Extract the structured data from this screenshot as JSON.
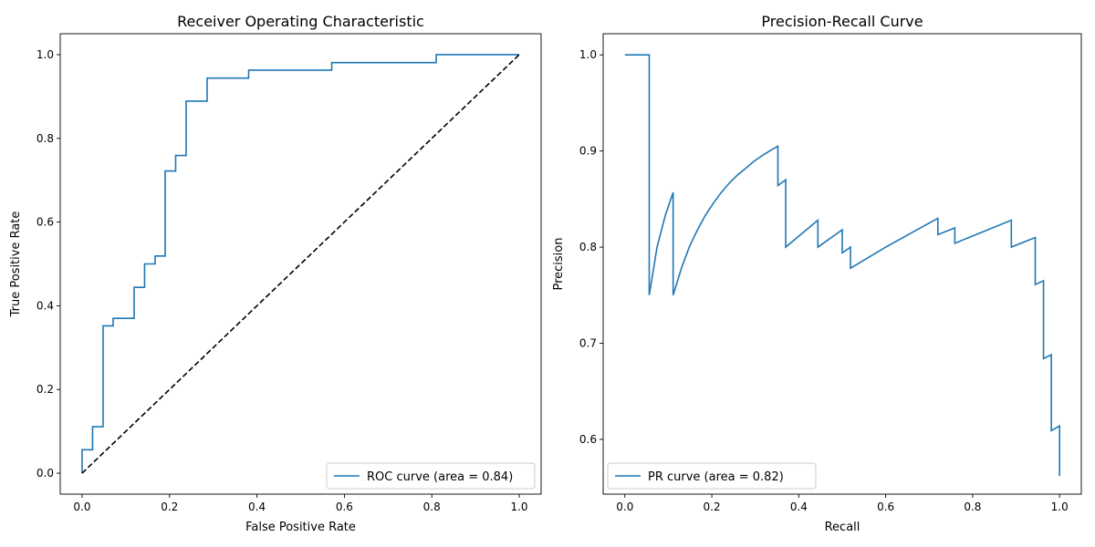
{
  "chart_data": [
    {
      "type": "line",
      "title": "Receiver Operating Characteristic",
      "xlabel": "False Positive Rate",
      "ylabel": "True Positive Rate",
      "xlim": [
        -0.05,
        1.05
      ],
      "ylim": [
        -0.05,
        1.05
      ],
      "xticks": [
        0.0,
        0.2,
        0.4,
        0.6,
        0.8,
        1.0
      ],
      "yticks": [
        0.0,
        0.2,
        0.4,
        0.6,
        0.8,
        1.0
      ],
      "xtick_labels": [
        "0.0",
        "0.2",
        "0.4",
        "0.6",
        "0.8",
        "1.0"
      ],
      "ytick_labels": [
        "0.0",
        "0.2",
        "0.4",
        "0.6",
        "0.8",
        "1.0"
      ],
      "grid": false,
      "legend_position": "lower-right",
      "series": [
        {
          "name": "ROC curve (area = 0.84)",
          "color": "#1f77b4",
          "style": "solid",
          "step": true,
          "x": [
            0,
            0,
            0.024,
            0.024,
            0.048,
            0.048,
            0.071,
            0.071,
            0.119,
            0.119,
            0.143,
            0.143,
            0.167,
            0.167,
            0.19,
            0.19,
            0.214,
            0.214,
            0.238,
            0.238,
            0.286,
            0.286,
            0.381,
            0.381,
            0.571,
            0.571,
            0.81,
            0.81,
            1.0
          ],
          "y": [
            0,
            0.056,
            0.056,
            0.111,
            0.111,
            0.352,
            0.352,
            0.37,
            0.37,
            0.444,
            0.444,
            0.5,
            0.5,
            0.519,
            0.519,
            0.722,
            0.722,
            0.759,
            0.759,
            0.889,
            0.889,
            0.944,
            0.944,
            0.963,
            0.963,
            0.981,
            0.981,
            1.0,
            1.0
          ]
        },
        {
          "name": "",
          "color": "#000000",
          "style": "dashed",
          "x": [
            0,
            1
          ],
          "y": [
            0,
            1
          ]
        }
      ]
    },
    {
      "type": "line",
      "title": "Precision-Recall Curve",
      "xlabel": "Recall",
      "ylabel": "Precision",
      "xlim": [
        -0.05,
        1.05
      ],
      "ylim": [
        0.543,
        1.022
      ],
      "xticks": [
        0.0,
        0.2,
        0.4,
        0.6,
        0.8,
        1.0
      ],
      "yticks": [
        0.6,
        0.7,
        0.8,
        0.9,
        1.0
      ],
      "xtick_labels": [
        "0.0",
        "0.2",
        "0.4",
        "0.6",
        "0.8",
        "1.0"
      ],
      "ytick_labels": [
        "0.6",
        "0.7",
        "0.8",
        "0.9",
        "1.0"
      ],
      "grid": false,
      "legend_position": "lower-left",
      "series": [
        {
          "name": "PR curve (area = 0.82)",
          "color": "#1f77b4",
          "style": "solid",
          "x": [
            0.0,
            0.056,
            0.056,
            0.074,
            0.093,
            0.111,
            0.111,
            0.13,
            0.148,
            0.167,
            0.185,
            0.204,
            0.222,
            0.241,
            0.259,
            0.278,
            0.296,
            0.315,
            0.333,
            0.352,
            0.352,
            0.37,
            0.37,
            0.444,
            0.444,
            0.5,
            0.5,
            0.519,
            0.519,
            0.6,
            0.72,
            0.72,
            0.759,
            0.759,
            0.889,
            0.889,
            0.944,
            0.944,
            0.963,
            0.963,
            0.981,
            0.981,
            1.0,
            1.0
          ],
          "y": [
            1.0,
            1.0,
            0.75,
            0.8,
            0.833,
            0.857,
            0.75,
            0.778,
            0.8,
            0.818,
            0.833,
            0.846,
            0.857,
            0.867,
            0.875,
            0.882,
            0.889,
            0.895,
            0.9,
            0.905,
            0.864,
            0.87,
            0.8,
            0.828,
            0.8,
            0.818,
            0.794,
            0.8,
            0.778,
            0.8,
            0.83,
            0.813,
            0.82,
            0.804,
            0.828,
            0.8,
            0.81,
            0.761,
            0.765,
            0.684,
            0.688,
            0.609,
            0.614,
            0.562
          ]
        }
      ]
    }
  ]
}
